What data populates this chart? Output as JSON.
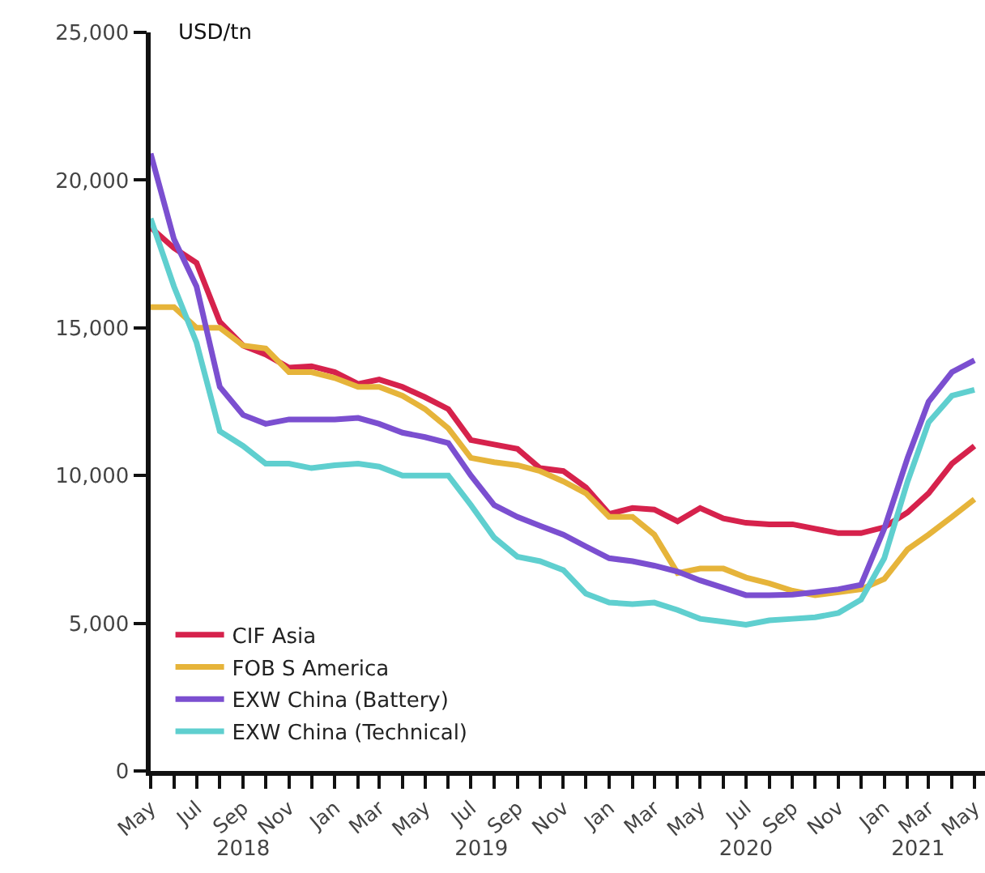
{
  "chart_data": {
    "type": "line",
    "ylabel": "USD/tn",
    "x": [
      "2018-05",
      "2018-06",
      "2018-07",
      "2018-08",
      "2018-09",
      "2018-10",
      "2018-11",
      "2018-12",
      "2019-01",
      "2019-02",
      "2019-03",
      "2019-04",
      "2019-05",
      "2019-06",
      "2019-07",
      "2019-08",
      "2019-09",
      "2019-10",
      "2019-11",
      "2019-12",
      "2020-01",
      "2020-02",
      "2020-03",
      "2020-04",
      "2020-05",
      "2020-06",
      "2020-07",
      "2020-08",
      "2020-09",
      "2020-10",
      "2020-11",
      "2020-12",
      "2021-01",
      "2021-02",
      "2021-03",
      "2021-04",
      "2021-05"
    ],
    "series": [
      {
        "name": "CIF Asia",
        "color": "#d6224c",
        "values": [
          18400,
          17700,
          17200,
          15200,
          14400,
          14100,
          13650,
          13700,
          13500,
          13100,
          13250,
          13000,
          12650,
          12250,
          11200,
          11050,
          10900,
          10250,
          10150,
          9600,
          8700,
          8900,
          8850,
          8450,
          8900,
          8550,
          8400,
          8350,
          8350,
          8200,
          8050,
          8050,
          8250,
          8750,
          9400,
          10400,
          11000
        ]
      },
      {
        "name": "FOB S America",
        "color": "#e6b43a",
        "values": [
          15700,
          15700,
          15000,
          15000,
          14400,
          14300,
          13500,
          13500,
          13300,
          13000,
          13000,
          12700,
          12250,
          11600,
          10600,
          10450,
          10350,
          10150,
          9800,
          9400,
          8600,
          8600,
          8000,
          6700,
          6850,
          6850,
          6550,
          6350,
          6100,
          5950,
          6050,
          6150,
          6500,
          7500,
          8000,
          8600,
          9200
        ]
      },
      {
        "name": "EXW China (Battery)",
        "color": "#7b4fd0",
        "values": [
          20900,
          18000,
          16400,
          13000,
          12050,
          11750,
          11900,
          11900,
          11900,
          11950,
          11750,
          11450,
          11300,
          11100,
          10000,
          9000,
          8600,
          8300,
          8000,
          7600,
          7200,
          7100,
          6950,
          6750,
          6450,
          6200,
          5950,
          5950,
          5970,
          6050,
          6150,
          6300,
          8200,
          10600,
          12500,
          13500,
          13900
        ]
      },
      {
        "name": "EXW China (Technical)",
        "color": "#5fcfcf",
        "values": [
          18700,
          16400,
          14500,
          11500,
          11000,
          10400,
          10400,
          10250,
          10350,
          10400,
          10300,
          10000,
          10000,
          10000,
          9000,
          7900,
          7250,
          7100,
          6800,
          6000,
          5700,
          5650,
          5700,
          5450,
          5150,
          5050,
          4950,
          5100,
          5150,
          5200,
          5350,
          5800,
          7200,
          9800,
          11800,
          12700,
          12900
        ]
      }
    ],
    "ylim": [
      0,
      25000
    ],
    "yticks": [
      {
        "value": 0,
        "label": "0"
      },
      {
        "value": 5000,
        "label": "5,000"
      },
      {
        "value": 10000,
        "label": "10,000"
      },
      {
        "value": 15000,
        "label": "15,000"
      },
      {
        "value": 20000,
        "label": "20,000"
      },
      {
        "value": 25000,
        "label": "25,000"
      }
    ],
    "xlim": [
      "2018-05-01",
      "2021-05-15"
    ],
    "xticks": [
      {
        "value": "2018-05",
        "label": "May"
      },
      {
        "value": "2018-06",
        "label": null
      },
      {
        "value": "2018-07",
        "label": "Jul"
      },
      {
        "value": "2018-08",
        "label": null
      },
      {
        "value": "2018-09",
        "label": "Sep"
      },
      {
        "value": "2018-10",
        "label": null
      },
      {
        "value": "2018-11",
        "label": "Nov"
      },
      {
        "value": "2018-12",
        "label": null
      },
      {
        "value": "2019-01",
        "label": "Jan"
      },
      {
        "value": "2019-02",
        "label": null
      },
      {
        "value": "2019-03",
        "label": "Mar"
      },
      {
        "value": "2019-04",
        "label": null
      },
      {
        "value": "2019-05",
        "label": "May"
      },
      {
        "value": "2019-06",
        "label": null
      },
      {
        "value": "2019-07",
        "label": "Jul"
      },
      {
        "value": "2019-08",
        "label": null
      },
      {
        "value": "2019-09",
        "label": "Sep"
      },
      {
        "value": "2019-10",
        "label": null
      },
      {
        "value": "2019-11",
        "label": "Nov"
      },
      {
        "value": "2019-12",
        "label": null
      },
      {
        "value": "2020-01",
        "label": "Jan"
      },
      {
        "value": "2020-02",
        "label": null
      },
      {
        "value": "2020-03",
        "label": "Mar"
      },
      {
        "value": "2020-04",
        "label": null
      },
      {
        "value": "2020-05",
        "label": "May"
      },
      {
        "value": "2020-06",
        "label": null
      },
      {
        "value": "2020-07",
        "label": "Jul"
      },
      {
        "value": "2020-08",
        "label": null
      },
      {
        "value": "2020-09",
        "label": "Sep"
      },
      {
        "value": "2020-10",
        "label": null
      },
      {
        "value": "2020-11",
        "label": "Nov"
      },
      {
        "value": "2020-12",
        "label": null
      },
      {
        "value": "2021-01",
        "label": "Jan"
      },
      {
        "value": "2021-02",
        "label": null
      },
      {
        "value": "2021-03",
        "label": "Mar"
      },
      {
        "value": "2021-04",
        "label": null
      },
      {
        "value": "2021-05",
        "label": "May"
      }
    ],
    "x2lim": [
      "2018-05-01",
      "2021-05-15"
    ],
    "x2ticks": [
      {
        "value": "2018-09",
        "label": "2018"
      },
      {
        "value": "2019-07-15",
        "label": "2019"
      },
      {
        "value": "2020-07",
        "label": "2020"
      },
      {
        "value": "2021-02-15",
        "label": "2021"
      }
    ],
    "grid": false,
    "legend": "bottom left",
    "marker": "none",
    "line_style": "solid"
  }
}
